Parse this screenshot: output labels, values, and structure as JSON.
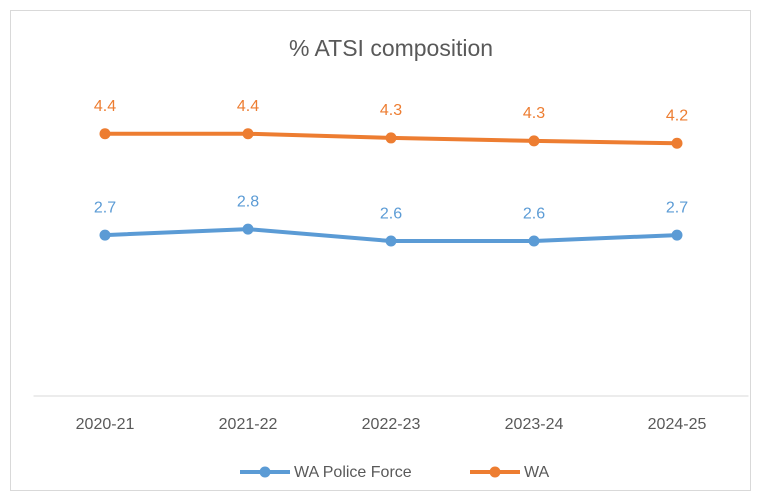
{
  "chart_data": {
    "type": "line",
    "title": "% ATSI composition",
    "categories": [
      "2020-21",
      "2021-22",
      "2022-23",
      "2023-24",
      "2024-25"
    ],
    "series": [
      {
        "name": "WA Police Force",
        "color": "#5b9bd5",
        "values": [
          2.7,
          2.8,
          2.6,
          2.6,
          2.7
        ]
      },
      {
        "name": "WA",
        "color": "#ed7d31",
        "values": [
          4.4,
          4.4,
          4.33,
          4.28,
          4.24
        ],
        "value_labels": [
          "4.4",
          "4.4",
          "4.3",
          "4.3",
          "4.2"
        ]
      }
    ],
    "ylim": [
      0,
      5
    ]
  }
}
